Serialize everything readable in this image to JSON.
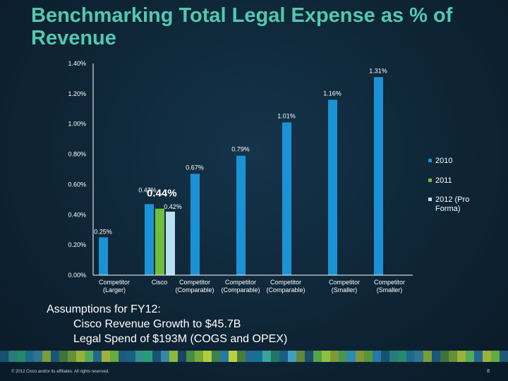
{
  "title": "Benchmarking Total Legal Expense as % of Revenue",
  "assumptions": {
    "heading": "Assumptions for FY12:",
    "lines": [
      "Cisco Revenue Growth to $45.7B",
      "Legal Spend of $193M (COGS and OPEX)"
    ]
  },
  "footer": {
    "copyright": "© 2012 Cisco and/or its affiliates. All rights reserved.",
    "page": "8"
  },
  "colors": {
    "title": "#52c9b0",
    "series_2010": "#1a93d6",
    "series_2011": "#6fbf3d",
    "series_2012": "#b9dff0"
  },
  "chart_data": {
    "type": "bar",
    "title": "",
    "xlabel": "",
    "ylabel": "",
    "ylim": [
      0,
      1.4
    ],
    "yticks": [
      "0.00%",
      "0.20%",
      "0.40%",
      "0.60%",
      "0.80%",
      "1.00%",
      "1.20%",
      "1.40%"
    ],
    "categories": [
      [
        "Competitor",
        "(Larger)"
      ],
      [
        "Cisco"
      ],
      [
        "Competitor",
        "(Comparable)"
      ],
      [
        "Competitor",
        "(Comparable)"
      ],
      [
        "Competitor",
        "(Comparable)"
      ],
      [
        "Competitor",
        "(Smaller)"
      ],
      [
        "Competitor",
        "(Smaller)"
      ]
    ],
    "series": [
      {
        "name": "2010",
        "color": "#1a93d6",
        "points": [
          {
            "category": 0,
            "value": 0.25,
            "label": "0.25%"
          },
          {
            "category": 1,
            "value": 0.47,
            "label": "0.47%"
          },
          {
            "category": 2,
            "value": 0.67,
            "label": "0.67%"
          },
          {
            "category": 3,
            "value": 0.79,
            "label": "0.79%"
          },
          {
            "category": 4,
            "value": 1.01,
            "label": "1.01%"
          },
          {
            "category": 5,
            "value": 1.16,
            "label": "1.16%"
          },
          {
            "category": 6,
            "value": 1.31,
            "label": "1.31%"
          }
        ]
      },
      {
        "name": "2011",
        "color": "#6fbf3d",
        "points": [
          {
            "category": 1,
            "value": 0.44,
            "label": "0.44%"
          }
        ]
      },
      {
        "name": "2012 (Pro Forma)",
        "color": "#b9dff0",
        "points": [
          {
            "category": 1,
            "value": 0.42,
            "label": "0.42%"
          }
        ]
      }
    ],
    "legend_position": "right",
    "grid": false
  }
}
